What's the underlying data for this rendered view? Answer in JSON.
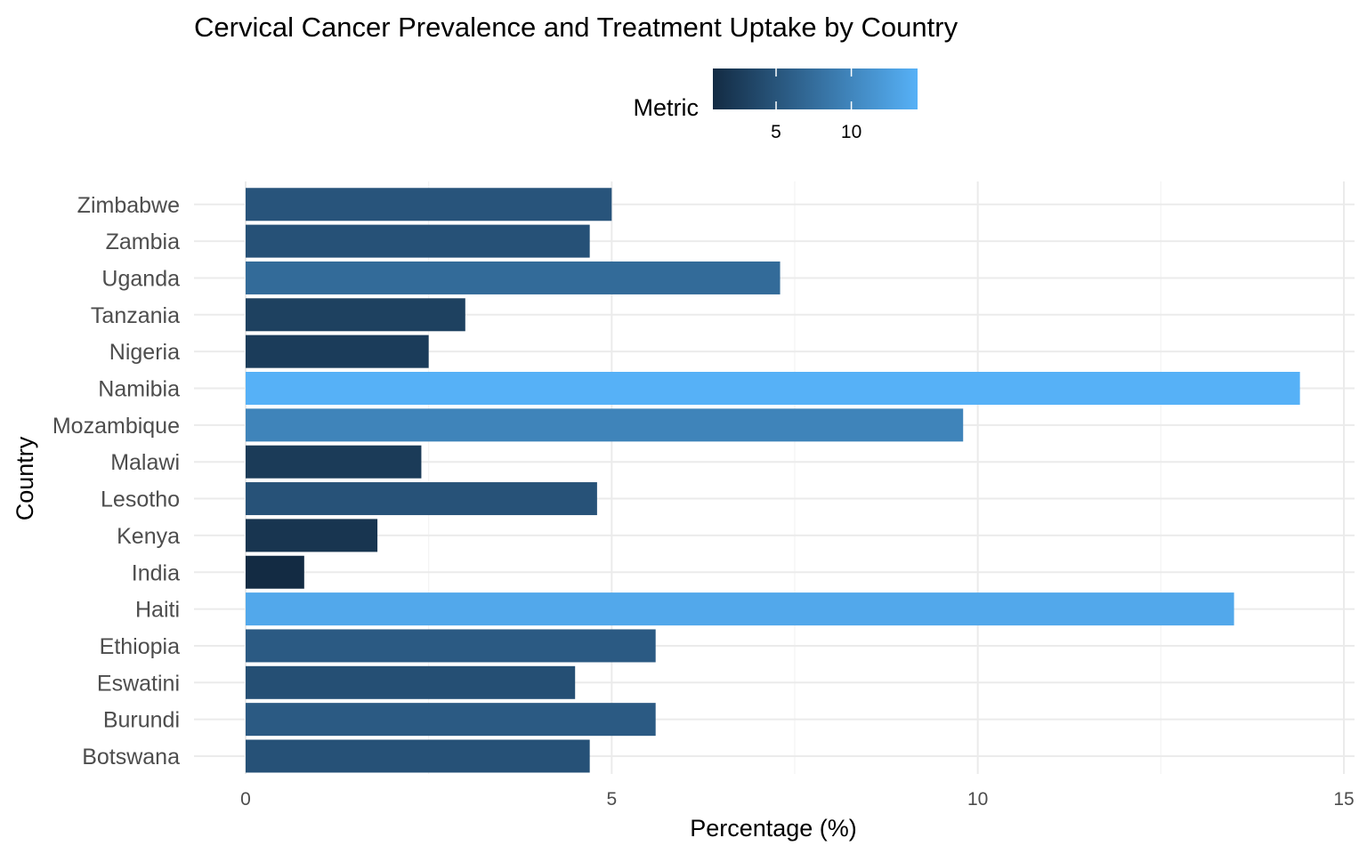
{
  "chart_data": {
    "type": "bar",
    "orientation": "horizontal",
    "title": "Cervical Cancer Prevalence and Treatment Uptake by Country",
    "xlabel": "Percentage (%)",
    "ylabel": "Country",
    "xlim": [
      0,
      15
    ],
    "x_ticks": [
      0,
      5,
      10,
      15
    ],
    "grid": true,
    "legend": {
      "title": "Metric",
      "placement": "top",
      "type": "colorbar",
      "ticks": [
        5,
        10
      ],
      "range": [
        0.8,
        14.4
      ],
      "color_low": "#132b43",
      "color_high": "#56b1f7"
    },
    "categories": [
      "Botswana",
      "Burundi",
      "Eswatini",
      "Ethiopia",
      "Haiti",
      "India",
      "Kenya",
      "Lesotho",
      "Malawi",
      "Mozambique",
      "Namibia",
      "Nigeria",
      "Tanzania",
      "Uganda",
      "Zambia",
      "Zimbabwe"
    ],
    "values": [
      4.7,
      5.6,
      4.5,
      5.6,
      13.5,
      0.8,
      1.8,
      4.8,
      2.4,
      9.8,
      14.4,
      2.5,
      3.0,
      7.3,
      4.7,
      5.0
    ]
  }
}
